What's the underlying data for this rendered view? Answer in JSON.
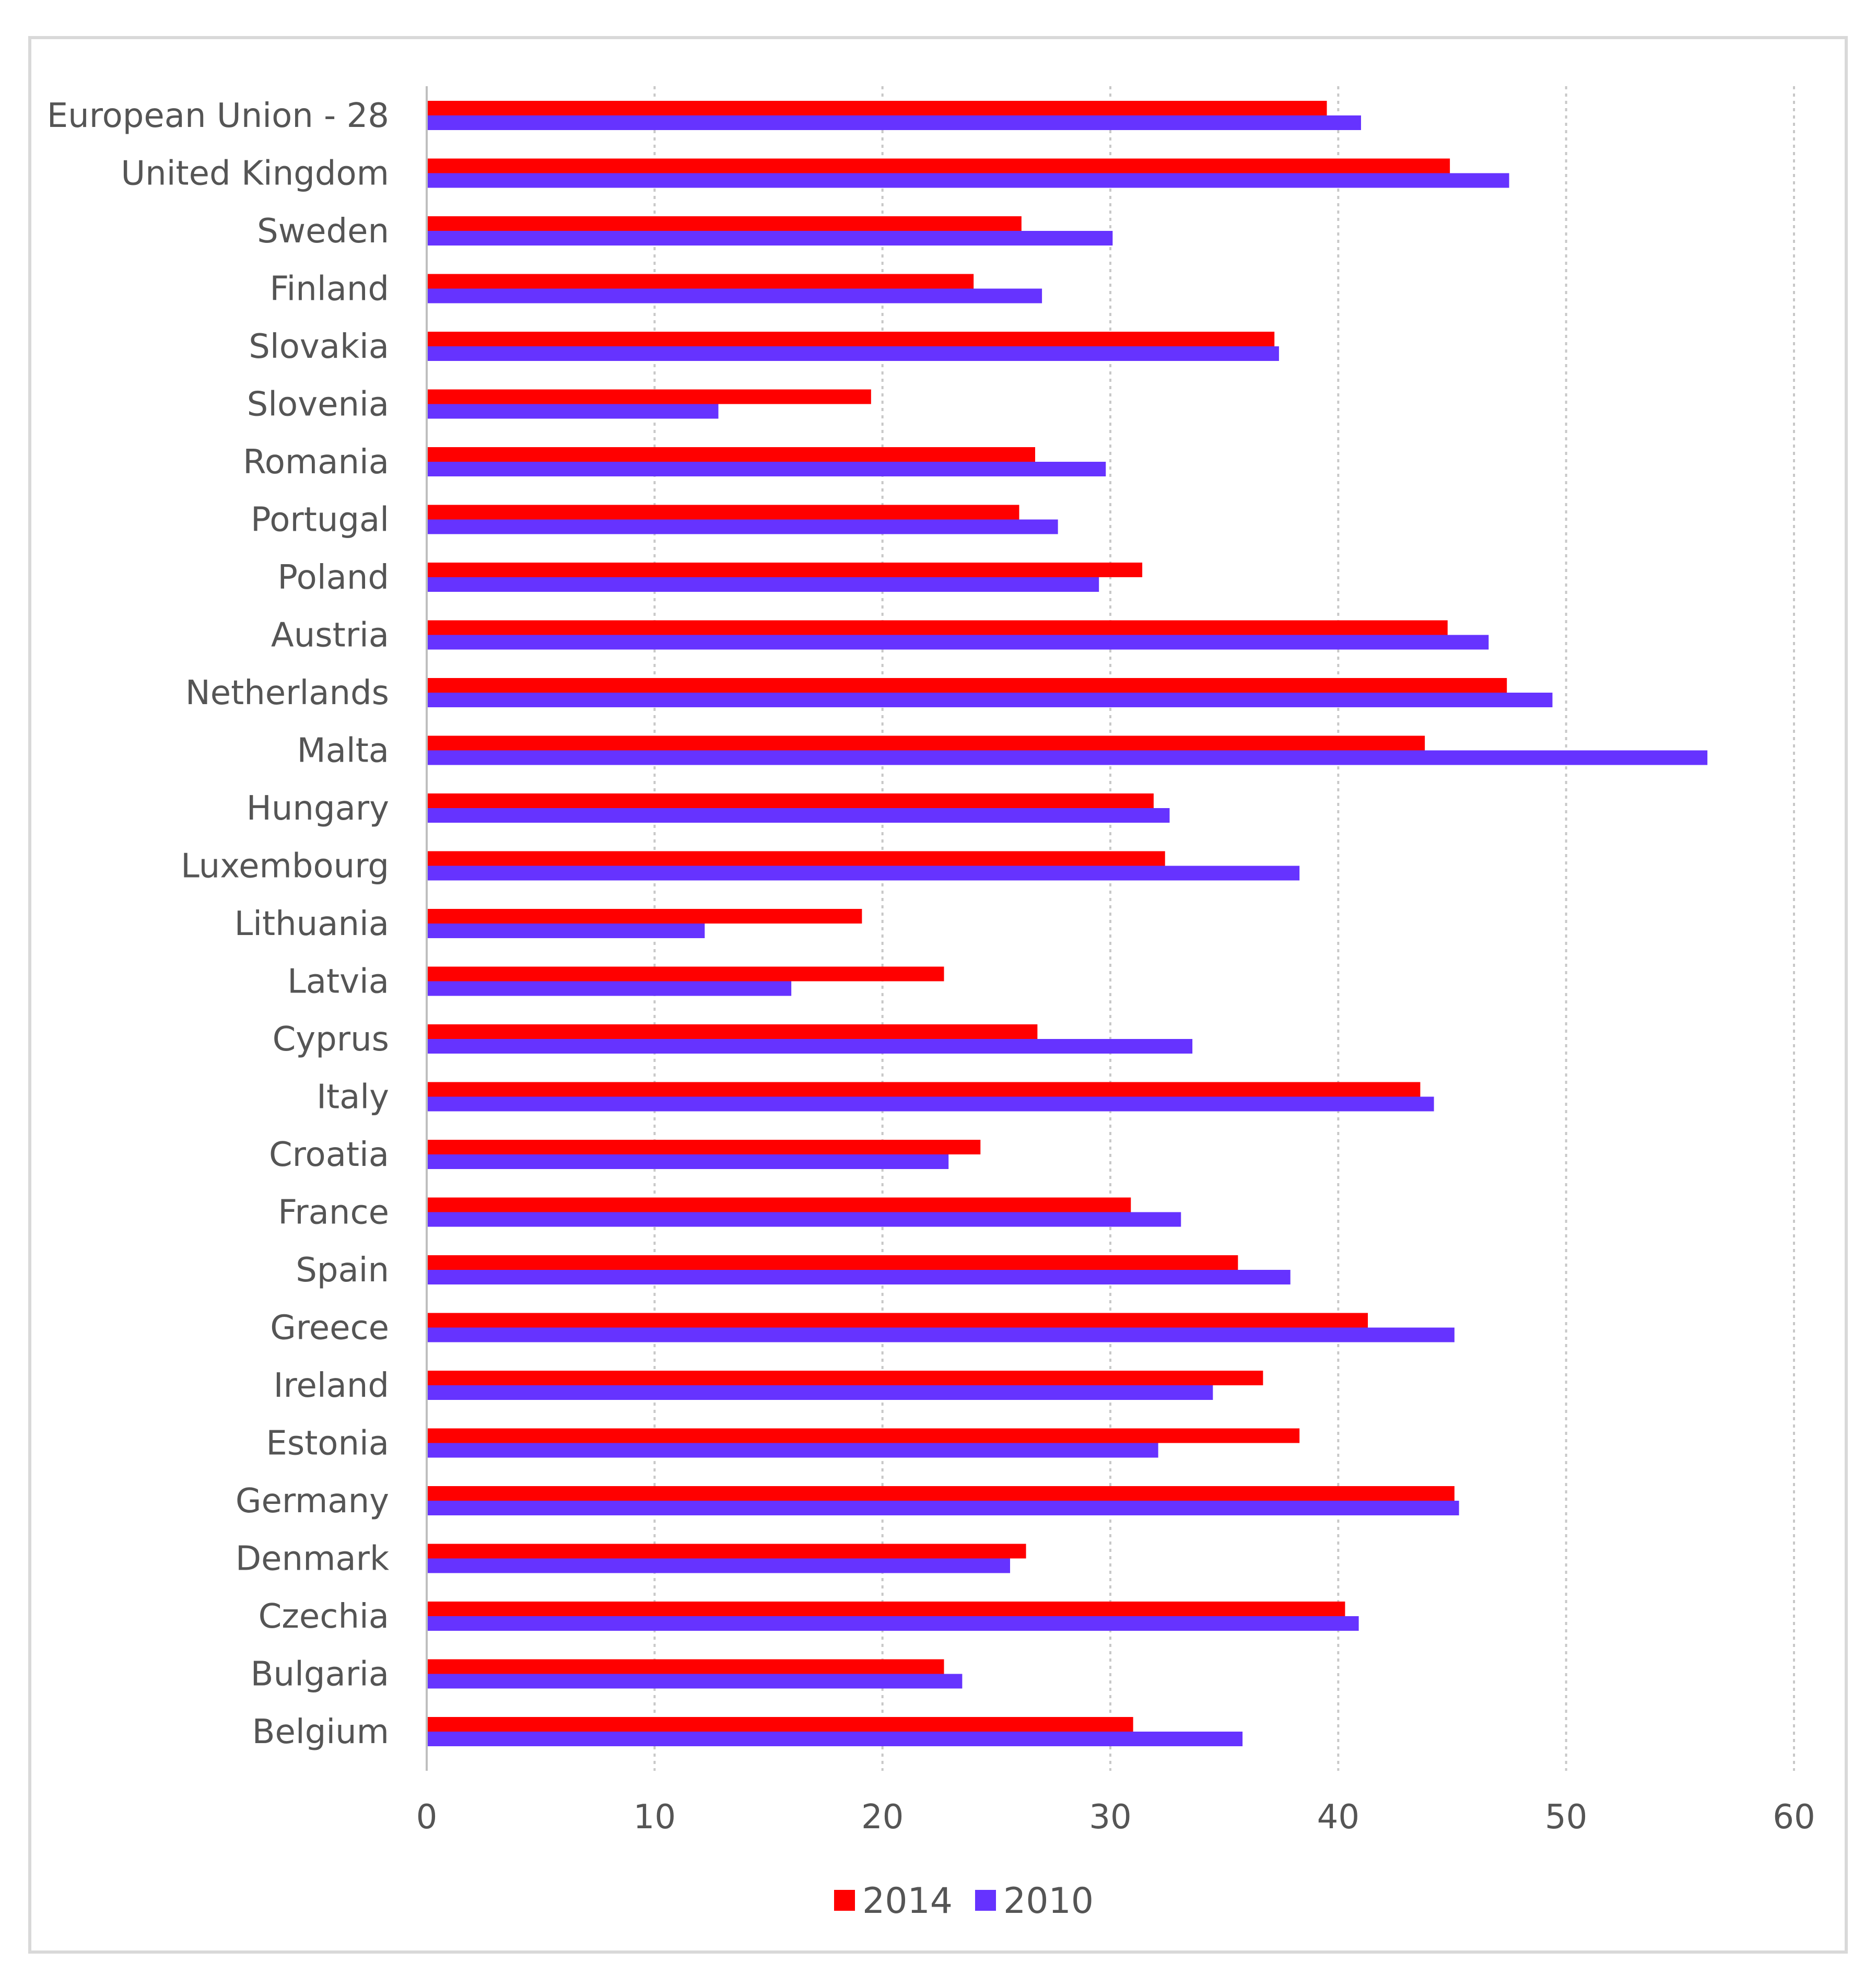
{
  "chart_data": {
    "type": "bar",
    "orientation": "horizontal",
    "title": "",
    "xlabel": "",
    "ylabel": "",
    "xlim": [
      0,
      60
    ],
    "xticks": [
      0,
      10,
      20,
      30,
      40,
      50,
      60
    ],
    "xtick_labels": [
      "0",
      "10",
      "20",
      "30",
      "40",
      "50",
      "60"
    ],
    "grid": "vertical-dotted",
    "legend_position": "bottom",
    "categories": [
      "European Union - 28",
      "United Kingdom",
      "Sweden",
      "Finland",
      "Slovakia",
      "Slovenia",
      "Romania",
      "Portugal",
      "Poland",
      "Austria",
      "Netherlands",
      "Malta",
      "Hungary",
      "Luxembourg",
      "Lithuania",
      "Latvia",
      "Cyprus",
      "Italy",
      "Croatia",
      "France",
      "Spain",
      "Greece",
      "Ireland",
      "Estonia",
      "Germany",
      "Denmark",
      "Czechia",
      "Bulgaria",
      "Belgium"
    ],
    "series": [
      {
        "name": "2014",
        "color": "#ff0000",
        "values": [
          39.5,
          44.9,
          26.1,
          24.0,
          37.2,
          19.5,
          26.7,
          26.0,
          31.4,
          44.8,
          47.4,
          43.8,
          31.9,
          32.4,
          19.1,
          22.7,
          26.8,
          43.6,
          24.3,
          30.9,
          35.6,
          41.3,
          36.7,
          38.3,
          45.1,
          26.3,
          40.3,
          22.7,
          31.0
        ]
      },
      {
        "name": "2010",
        "color": "#6633ff",
        "values": [
          41.0,
          47.5,
          30.1,
          27.0,
          37.4,
          12.8,
          29.8,
          27.7,
          29.5,
          46.6,
          49.4,
          56.2,
          32.6,
          38.3,
          12.2,
          16.0,
          33.6,
          44.2,
          22.9,
          33.1,
          37.9,
          45.1,
          34.5,
          32.1,
          45.3,
          25.6,
          40.9,
          23.5,
          35.8
        ]
      }
    ]
  }
}
